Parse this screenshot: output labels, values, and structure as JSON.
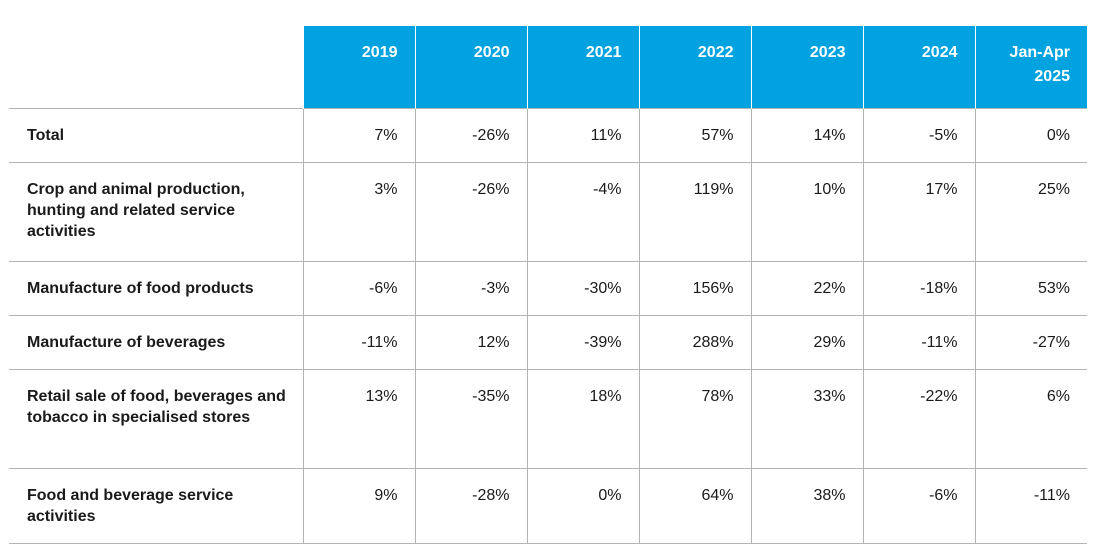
{
  "columns": [
    "2019",
    "2020",
    "2021",
    "2022",
    "2023",
    "2024",
    "Jan-Apr 2025"
  ],
  "rows": [
    {
      "label": "Total",
      "values": [
        "7%",
        "-26%",
        "11%",
        "57%",
        "14%",
        "-5%",
        "0%"
      ]
    },
    {
      "label": "Crop and animal production, hunting and related service activities",
      "values": [
        "3%",
        "-26%",
        "-4%",
        "119%",
        "10%",
        "17%",
        "25%"
      ]
    },
    {
      "label": "Manufacture of food products",
      "values": [
        "-6%",
        "-3%",
        "-30%",
        "156%",
        "22%",
        "-18%",
        "53%"
      ]
    },
    {
      "label": "Manufacture of beverages",
      "values": [
        "-11%",
        "12%",
        "-39%",
        "288%",
        "29%",
        "-11%",
        "-27%"
      ]
    },
    {
      "label": "Retail sale of food, beverages and tobacco in specialised stores",
      "values": [
        "13%",
        "-35%",
        "18%",
        "78%",
        "33%",
        "-22%",
        "6%"
      ]
    },
    {
      "label": "Food and beverage service activities",
      "values": [
        "9%",
        "-28%",
        "0%",
        "64%",
        "38%",
        "-6%",
        "-11%"
      ]
    }
  ],
  "colors": {
    "header_bg": "#00a3e0",
    "header_text": "#ffffff",
    "grid": "#b3b3b3"
  }
}
